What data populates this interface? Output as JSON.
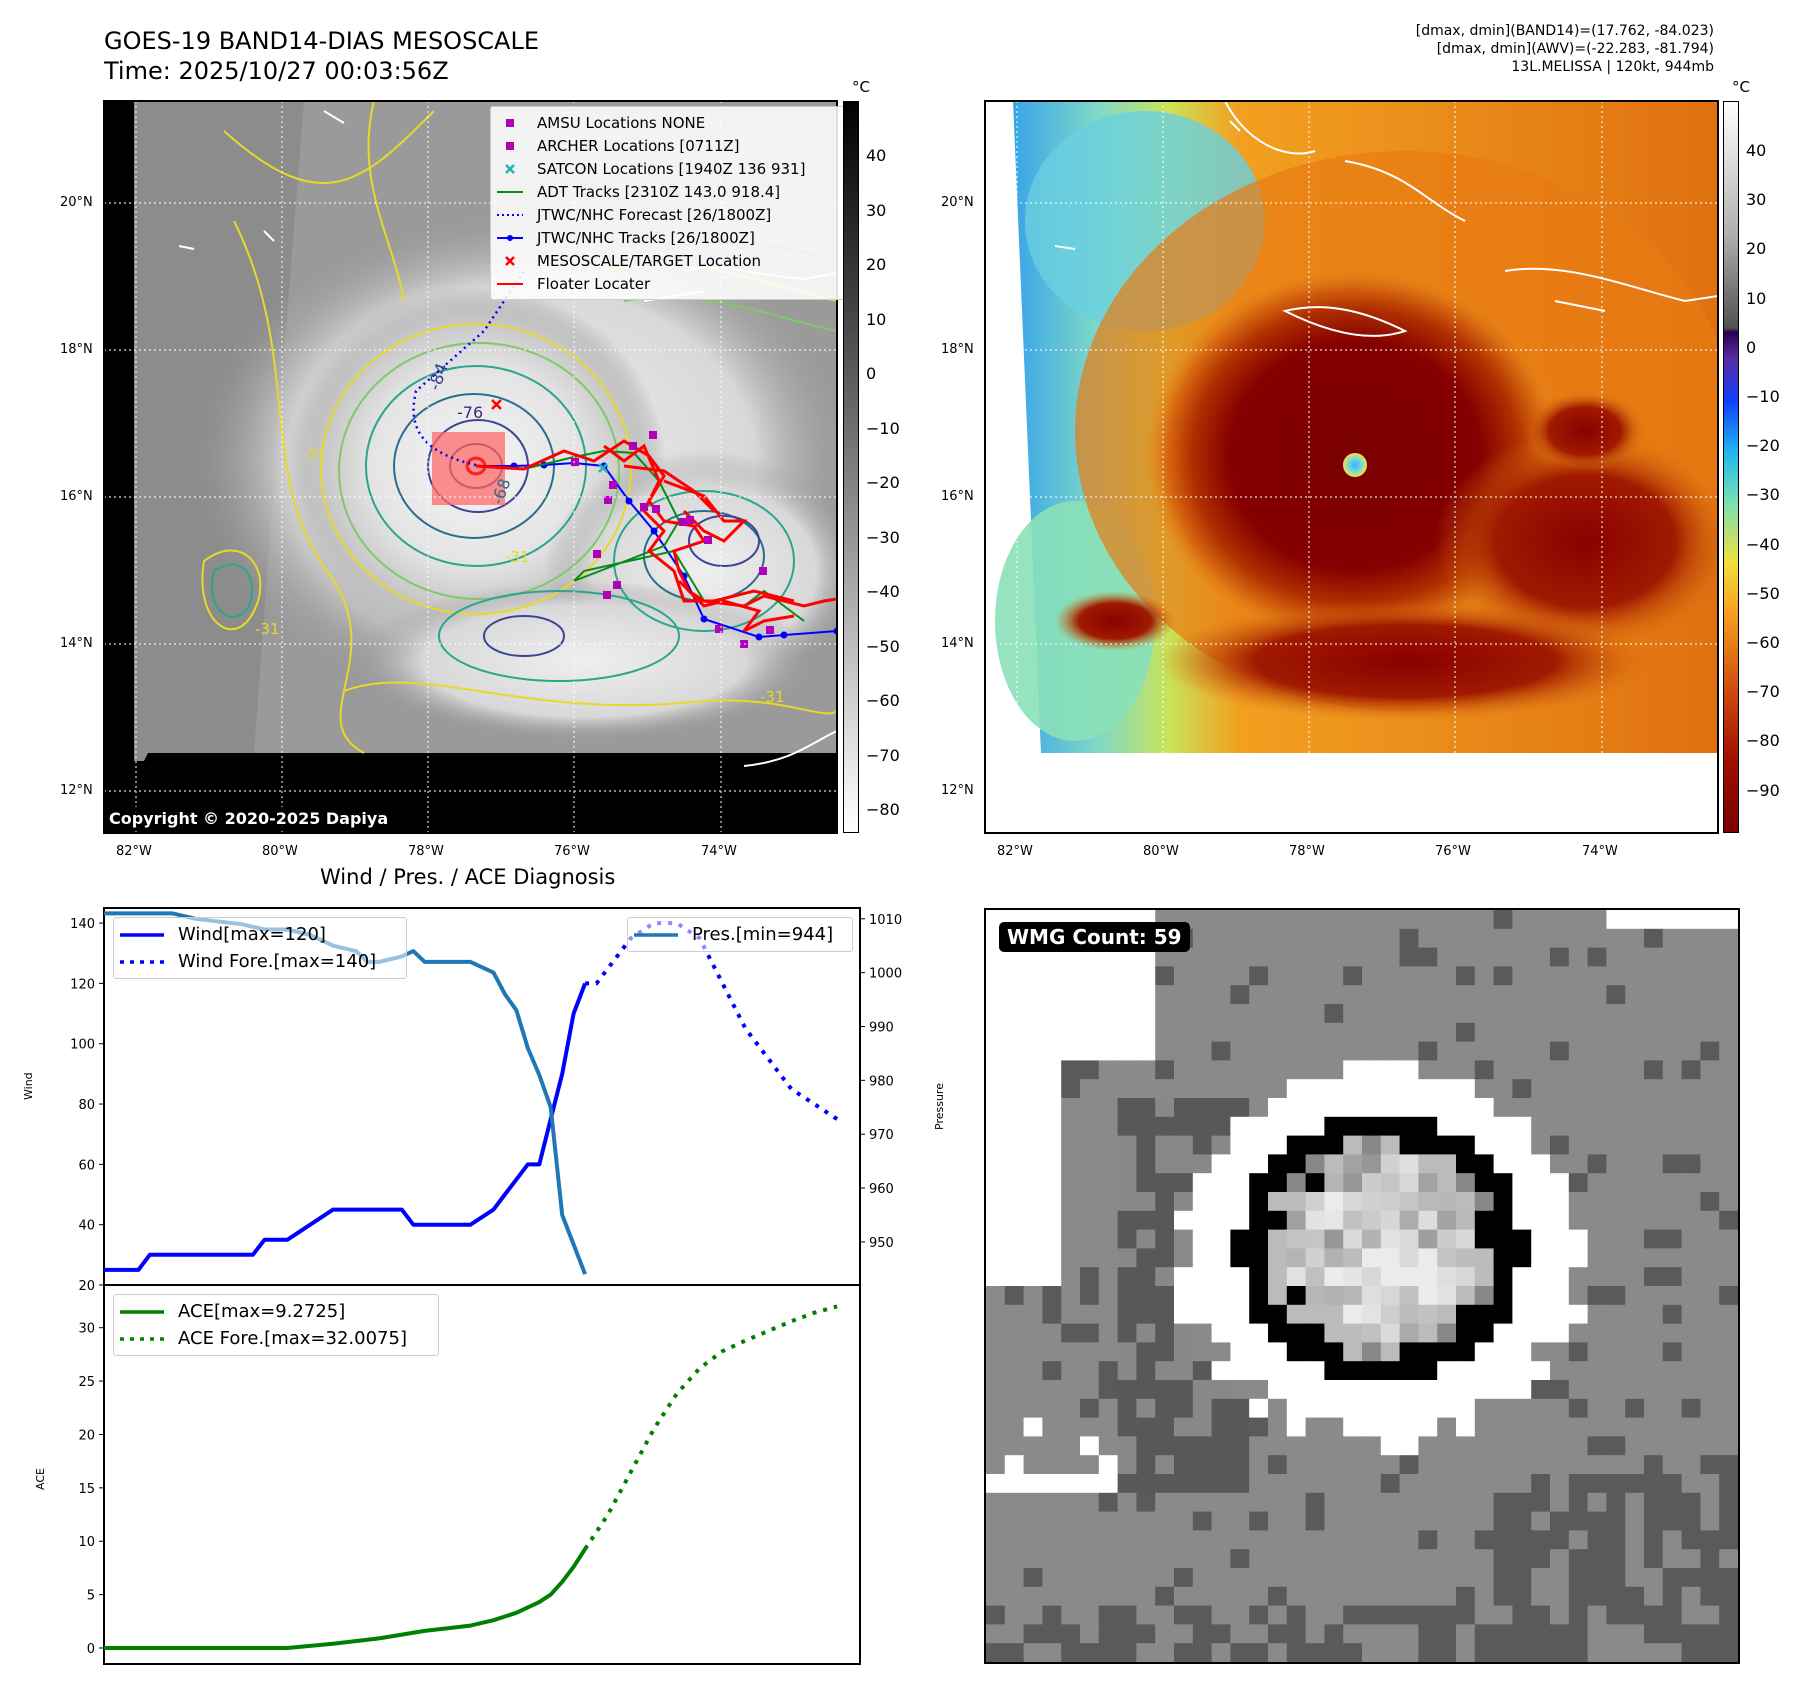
{
  "header": {
    "title_line1": "GOES-19 BAND14-DIAS MESOSCALE",
    "title_line2": "Time: 2025/10/27 00:03:56Z",
    "info_line1": "[dmax, dmin](BAND14)=(17.762, -84.023)",
    "info_line2": "[dmax, dmin](AWV)=(-22.283, -81.794)",
    "info_line3": "13L.MELISSA | 120kt, 944mb"
  },
  "map_axes": {
    "lat_labels": [
      "20°N",
      "18°N",
      "16°N",
      "14°N",
      "12°N"
    ],
    "lon_labels_left": [
      "82°W",
      "80°W",
      "78°W",
      "76°W",
      "74°W"
    ],
    "lon_labels_right": [
      "82°W",
      "80°W",
      "78°W",
      "76°W",
      "74°W"
    ]
  },
  "left_map": {
    "contour_labels": [
      "-84",
      "-76",
      "-68",
      "-31",
      "-31",
      "-31",
      "-31"
    ],
    "copyright": "Copyright © 2020-2025 Dapiya",
    "colorbar": {
      "unit": "°C",
      "ticks": [
        "40",
        "30",
        "20",
        "10",
        "0",
        "−10",
        "−20",
        "−30",
        "−40",
        "−50",
        "−60",
        "−70",
        "−80"
      ]
    },
    "legend": [
      {
        "label": "AMSU Locations NONE",
        "marker": "square",
        "color": "#b000b8"
      },
      {
        "label": "ARCHER Locations [0711Z]",
        "marker": "square",
        "color": "#b000b8"
      },
      {
        "label": "SATCON Locations [1940Z 136 931]",
        "marker": "x",
        "color": "#1fb5b5"
      },
      {
        "label": "ADT Tracks [2310Z 143.0 918.4]",
        "marker": "line",
        "color": "#0a8a1a"
      },
      {
        "label": "JTWC/NHC Forecast [26/1800Z]",
        "marker": "dotted",
        "color": "#0000ff"
      },
      {
        "label": "JTWC/NHC Tracks [26/1800Z]",
        "marker": "line-dot",
        "color": "#0000ff"
      },
      {
        "label": "MESOSCALE/TARGET Location",
        "marker": "x",
        "color": "#ff0000"
      },
      {
        "label": "Floater Locater",
        "marker": "line",
        "color": "#ff0000"
      }
    ]
  },
  "right_map": {
    "colorbar": {
      "unit": "°C",
      "ticks": [
        "40",
        "30",
        "20",
        "10",
        "0",
        "−10",
        "−20",
        "−30",
        "−40",
        "−50",
        "−60",
        "−70",
        "−80",
        "−90"
      ]
    }
  },
  "wmg_panel": {
    "count_label": "WMG Count: 59"
  },
  "chart_data": [
    {
      "type": "line",
      "title": "Wind / Pres. / ACE Diagnosis",
      "ylabel": "Wind",
      "y2label": "Pressure",
      "ylim": [
        20,
        145
      ],
      "y2lim": [
        942,
        1012
      ],
      "yticks": [
        20,
        40,
        60,
        80,
        100,
        120,
        140
      ],
      "y2ticks": [
        950,
        960,
        970,
        980,
        990,
        1000,
        1010
      ],
      "xlim": [
        0,
        33
      ],
      "legend_left": [
        "Wind[max=120]",
        "Wind Fore.[max=140]"
      ],
      "legend_right": [
        "Pres.[min=944]"
      ],
      "series": [
        {
          "name": "Wind[max=120]",
          "axis": "left",
          "color": "#0000ff",
          "style": "solid",
          "x": [
            0,
            1.5,
            2,
            6.5,
            7,
            8,
            9,
            10,
            13,
            13.5,
            16,
            17,
            17.5,
            18,
            18.5,
            19,
            19.5,
            20,
            20.5,
            21
          ],
          "y": [
            25,
            25,
            30,
            30,
            35,
            35,
            40,
            45,
            45,
            40,
            40,
            45,
            50,
            55,
            60,
            60,
            75,
            90,
            110,
            120
          ]
        },
        {
          "name": "Wind Fore.[max=140]",
          "axis": "left",
          "color": "#0000ff",
          "style": "dotted",
          "x": [
            21,
            21.5,
            22,
            23,
            24,
            25,
            26,
            27,
            28,
            29,
            30,
            31,
            32
          ],
          "y": [
            120,
            120,
            125,
            135,
            140,
            140,
            135,
            120,
            105,
            95,
            85,
            80,
            75
          ]
        },
        {
          "name": "Pres.[min=944]",
          "axis": "right",
          "color": "#1f77b4",
          "style": "solid",
          "x": [
            0,
            3,
            4,
            6,
            7,
            8,
            9,
            10,
            11,
            11.5,
            12,
            13,
            13.5,
            14,
            15,
            16,
            17,
            17.5,
            18,
            18.5,
            19,
            19.5,
            20,
            21
          ],
          "y": [
            1011,
            1011,
            1010,
            1009,
            1008,
            1008,
            1007,
            1005,
            1004,
            1002,
            1002,
            1003,
            1004,
            1002,
            1002,
            1002,
            1000,
            996,
            993,
            986,
            981,
            975,
            955,
            944
          ]
        }
      ]
    },
    {
      "type": "line",
      "ylabel": "ACE",
      "ylim": [
        -1.5,
        34
      ],
      "yticks": [
        0,
        5,
        10,
        15,
        20,
        25,
        30
      ],
      "xlim": [
        0,
        33
      ],
      "legend": [
        "ACE[max=9.2725]",
        "ACE Fore.[max=32.0075]"
      ],
      "series": [
        {
          "name": "ACE[max=9.2725]",
          "color": "#008000",
          "style": "solid",
          "x": [
            0,
            3,
            6,
            8,
            10,
            12,
            14,
            16,
            17,
            18,
            18.5,
            19,
            19.5,
            20,
            20.5,
            21
          ],
          "y": [
            0,
            0,
            0,
            0,
            0.4,
            0.9,
            1.6,
            2.1,
            2.6,
            3.3,
            3.8,
            4.3,
            5.0,
            6.2,
            7.6,
            9.27
          ]
        },
        {
          "name": "ACE Fore.[max=32.0075]",
          "color": "#008000",
          "style": "dotted",
          "x": [
            21,
            22,
            23,
            24,
            25,
            26,
            27,
            28,
            29,
            30,
            31,
            32
          ],
          "y": [
            9.27,
            12.5,
            16.5,
            20.5,
            23.8,
            26.2,
            27.8,
            28.8,
            29.7,
            30.6,
            31.4,
            32.0
          ]
        }
      ]
    }
  ]
}
